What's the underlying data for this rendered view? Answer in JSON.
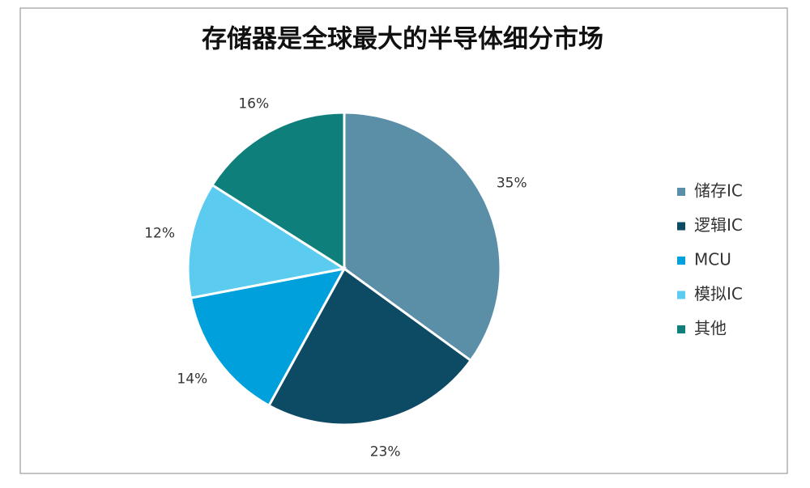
{
  "chart_data": {
    "type": "pie",
    "title": "存储器是全球最大的半导体细分市场",
    "categories": [
      "储存IC",
      "逻辑IC",
      "MCU",
      "模拟IC",
      "其他"
    ],
    "values": [
      35,
      23,
      14,
      12,
      16
    ],
    "value_labels": [
      "35%",
      "23%",
      "14%",
      "12%",
      "16%"
    ],
    "colors": [
      "#5b8fa8",
      "#0d4a63",
      "#00a0dc",
      "#5ccbf0",
      "#0e7f7a"
    ],
    "legend": "right"
  }
}
